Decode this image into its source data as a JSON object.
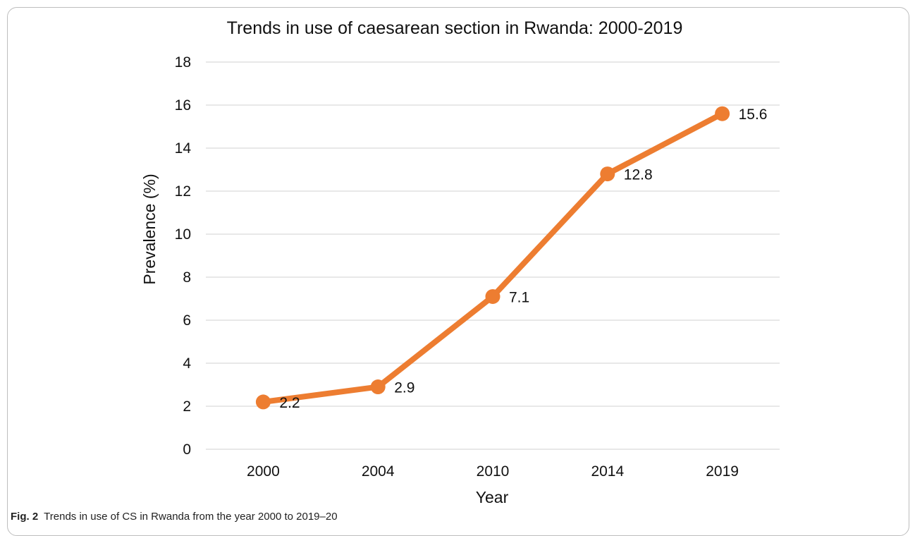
{
  "caption": {
    "label": "Fig. 2",
    "text": "Trends in use of CS in Rwanda from the year 2000 to 2019–20"
  },
  "colors": {
    "series": "#ED7D31",
    "grid": "#d9d9d9"
  },
  "chart_data": {
    "type": "line",
    "title": "Trends in use of caesarean section in Rwanda: 2000-2019",
    "xlabel": "Year",
    "ylabel": "Prevalence (%)",
    "categories": [
      "2000",
      "2004",
      "2010",
      "2014",
      "2019"
    ],
    "values": [
      2.2,
      2.9,
      7.1,
      12.8,
      15.6
    ],
    "data_labels": [
      "2.2",
      "2.9",
      "7.1",
      "12.8",
      "15.6"
    ],
    "ylim": [
      0,
      18
    ],
    "yticks": [
      0,
      2,
      4,
      6,
      8,
      10,
      12,
      14,
      16,
      18
    ],
    "grid": true,
    "legend": "none",
    "markers": true
  }
}
